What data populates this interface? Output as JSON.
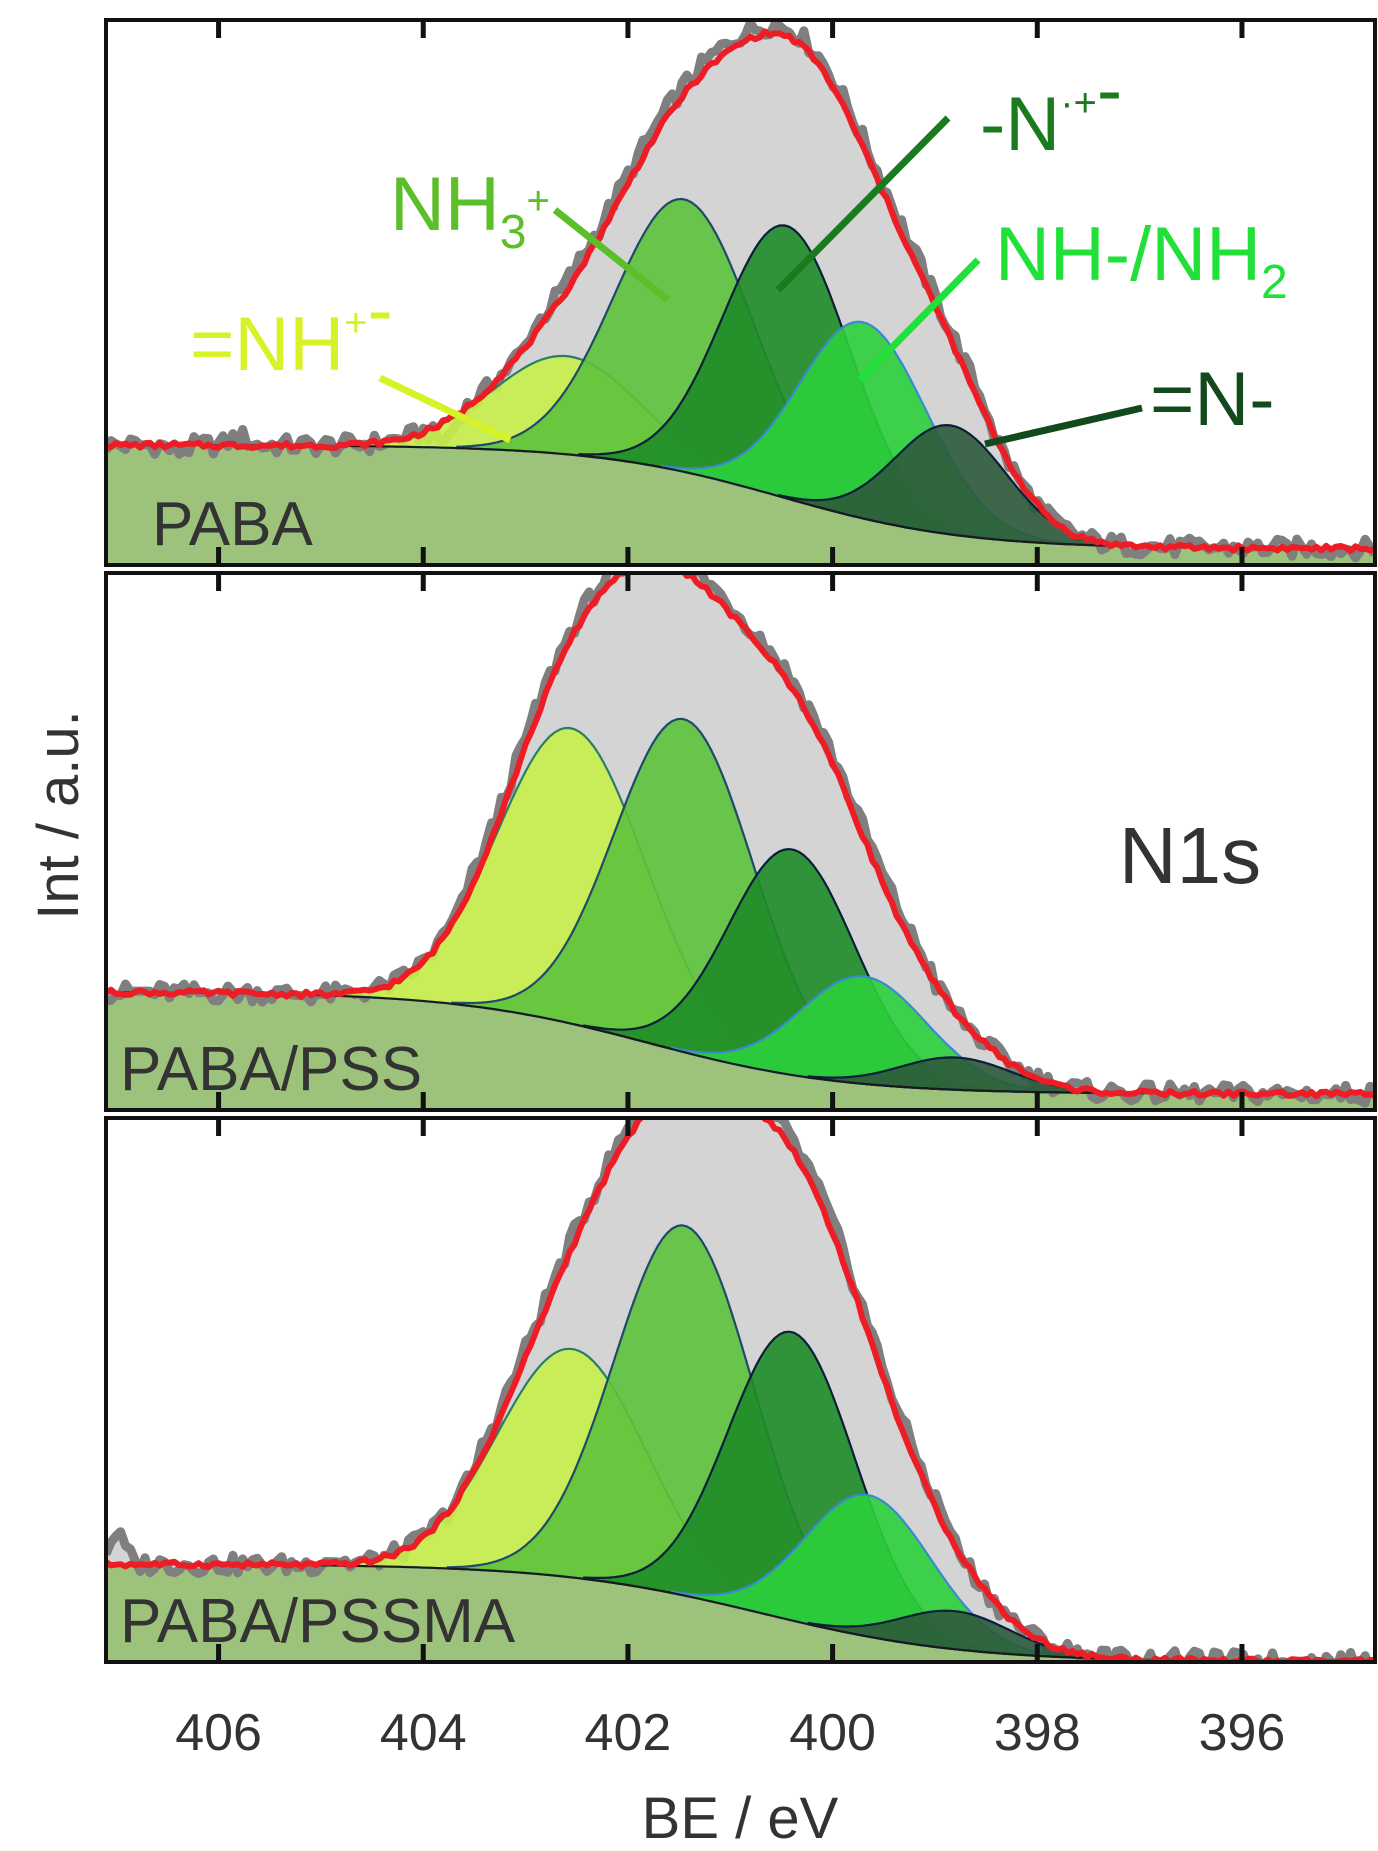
{
  "chart_data": {
    "type": "area",
    "title": "",
    "spectrum_label": "N1s",
    "xlabel": "BE / eV",
    "ylabel": "Int / a.u.",
    "xlim": [
      407.1,
      394.7
    ],
    "x_reversed": true,
    "xticks": [
      406,
      404,
      402,
      400,
      398,
      396
    ],
    "xtick_labels": [
      "406",
      "404",
      "402",
      "400",
      "398",
      "396"
    ],
    "colors": {
      "raw": "#7f7f7f",
      "envelope_fill": "#d4d4d4",
      "fit": "#ee1c24",
      "background_fill": "#9dc27b",
      "component_outline": "#0b2a1b"
    },
    "components": [
      {
        "key": "NH_plus",
        "label_parts": [
          {
            "t": "=NH"
          },
          {
            "t": "+",
            "sup": true
          },
          {
            "t": "-"
          }
        ],
        "color": "#c8f04a",
        "label_color": "#d8f228",
        "outline": "#2a7d6a",
        "sigma": 0.72
      },
      {
        "key": "NH3_plus",
        "label_parts": [
          {
            "t": "NH"
          },
          {
            "t": "3",
            "sub": true
          },
          {
            "t": "+",
            "sup": true
          }
        ],
        "color": "#5dc23c",
        "label_color": "#5cbf2a",
        "outline": "#1f4a6a",
        "sigma": 0.68
      },
      {
        "key": "N_radical_cation",
        "label_parts": [
          {
            "t": "-N"
          },
          {
            "t": "·+",
            "sup": true
          },
          {
            "t": "-"
          }
        ],
        "color": "#1f8c28",
        "label_color": "#1a7a1e",
        "outline": "#0b1f3a",
        "sigma": 0.62
      },
      {
        "key": "NH_NH2",
        "label_parts": [
          {
            "t": "NH-/NH"
          },
          {
            "t": "2",
            "sub": true
          }
        ],
        "color": "#2cd03c",
        "label_color": "#22e03a",
        "outline": "#3a8ad0",
        "sigma": 0.62
      },
      {
        "key": "N_imine",
        "label_parts": [
          {
            "t": "=N-"
          }
        ],
        "color": "#2e5a3c",
        "label_color": "#124a1e",
        "outline": "#0b1f3a",
        "sigma": 0.55
      }
    ],
    "panels": [
      {
        "name": "PABA",
        "baseline": {
          "high": 0.22,
          "low": 0.03,
          "mid": 400.5,
          "width": 0.9
        },
        "tail_bumps": [
          {
            "x": 406.4,
            "y": 0.2
          },
          {
            "x": 405.8,
            "y": 0.25
          },
          {
            "x": 403.8,
            "y": 0.2
          }
        ],
        "peaks": [
          {
            "component": "NH_plus",
            "center": 402.6,
            "height": 0.18
          },
          {
            "component": "NH3_plus",
            "center": 401.45,
            "height": 0.5
          },
          {
            "component": "N_radical_cation",
            "center": 400.45,
            "height": 0.5
          },
          {
            "component": "NH_NH2",
            "center": 399.7,
            "height": 0.36
          },
          {
            "component": "N_imine",
            "center": 398.85,
            "height": 0.2
          }
        ]
      },
      {
        "name": "PABA/PSS",
        "baseline": {
          "high": 0.22,
          "low": 0.03,
          "mid": 401.8,
          "width": 0.95
        },
        "tail_bumps": [
          {
            "x": 406.5,
            "y": 0.22
          },
          {
            "x": 405.7,
            "y": 0.22
          }
        ],
        "peaks": [
          {
            "component": "NH_plus",
            "center": 402.55,
            "height": 0.55
          },
          {
            "component": "NH3_plus",
            "center": 401.45,
            "height": 0.62
          },
          {
            "component": "N_radical_cation",
            "center": 400.4,
            "height": 0.42
          },
          {
            "component": "NH_NH2",
            "center": 399.7,
            "height": 0.2
          },
          {
            "component": "N_imine",
            "center": 398.8,
            "height": 0.06
          }
        ]
      },
      {
        "name": "PABA/PSSMA",
        "baseline": {
          "high": 0.18,
          "low": 0.0,
          "mid": 400.7,
          "width": 1.0
        },
        "tail_bumps": [
          {
            "x": 407.0,
            "y": 0.28
          },
          {
            "x": 404.9,
            "y": 0.2
          }
        ],
        "peaks": [
          {
            "component": "NH_plus",
            "center": 402.55,
            "height": 0.42
          },
          {
            "component": "NH3_plus",
            "center": 401.45,
            "height": 0.68
          },
          {
            "component": "N_radical_cation",
            "center": 400.4,
            "height": 0.53
          },
          {
            "component": "NH_NH2",
            "center": 399.65,
            "height": 0.26
          },
          {
            "component": "N_imine",
            "center": 398.8,
            "height": 0.07
          }
        ]
      }
    ]
  }
}
